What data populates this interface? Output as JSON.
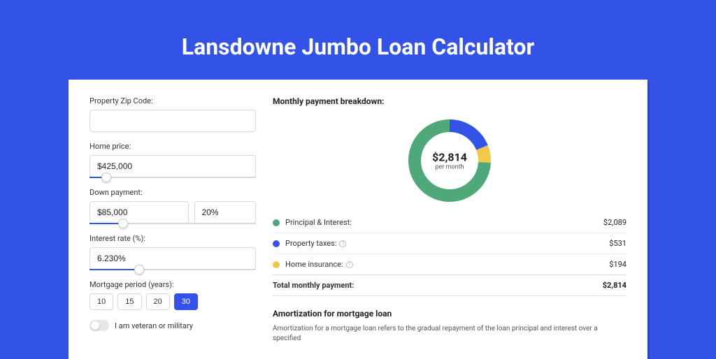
{
  "page": {
    "title": "Lansdowne Jumbo Loan Calculator",
    "bg_color": "#3353e8"
  },
  "form": {
    "zip": {
      "label": "Property Zip Code:",
      "value": ""
    },
    "home_price": {
      "label": "Home price:",
      "value": "$425,000",
      "slider_pct": 10
    },
    "down_payment": {
      "label": "Down payment:",
      "amount": "$85,000",
      "percent": "20%",
      "slider_pct": 20
    },
    "interest": {
      "label": "Interest rate (%):",
      "value": "6.230%",
      "slider_pct": 30
    },
    "period": {
      "label": "Mortgage period (years):",
      "options": [
        "10",
        "15",
        "20",
        "30"
      ],
      "selected": "30"
    },
    "veteran": {
      "label": "I am veteran or military",
      "on": false
    }
  },
  "breakdown": {
    "title": "Monthly payment breakdown:",
    "center_amount": "$2,814",
    "center_sub": "per month",
    "items": [
      {
        "label": "Principal & Interest:",
        "value": "$2,089",
        "color": "#4fa879",
        "info": false,
        "pct": 0.742
      },
      {
        "label": "Property taxes:",
        "value": "$531",
        "color": "#3353e8",
        "info": true,
        "pct": 0.189
      },
      {
        "label": "Home insurance:",
        "value": "$194",
        "color": "#f0c94a",
        "info": true,
        "pct": 0.069
      }
    ],
    "total": {
      "label": "Total monthly payment:",
      "value": "$2,814"
    }
  },
  "amortization": {
    "title": "Amortization for mortgage loan",
    "text": "Amortization for a mortgage loan refers to the gradual repayment of the loan principal and interest over a specified"
  },
  "donut": {
    "stroke_width": 18,
    "radius": 50
  }
}
